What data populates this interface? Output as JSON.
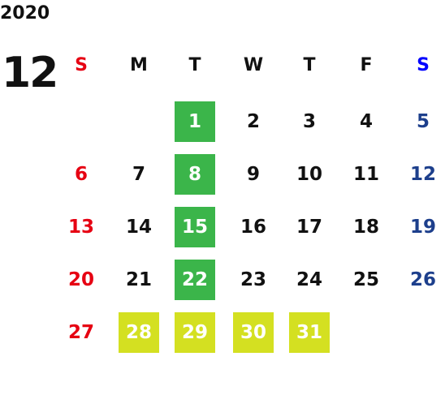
{
  "calendar": {
    "year": "2020",
    "month": "12",
    "weekdays": [
      {
        "label": "S",
        "color": "#e60012"
      },
      {
        "label": "M",
        "color": "#111111"
      },
      {
        "label": "T",
        "color": "#111111"
      },
      {
        "label": "W",
        "color": "#111111"
      },
      {
        "label": "T",
        "color": "#111111"
      },
      {
        "label": "F",
        "color": "#111111"
      },
      {
        "label": "S",
        "color": "#0000ff"
      }
    ],
    "day_colors": [
      "#e60012",
      "#111111",
      "#111111",
      "#111111",
      "#111111",
      "#111111",
      "#1d3f8c"
    ],
    "weeks": [
      [
        null,
        null,
        {
          "day": "1",
          "fill": "#3bb54a"
        },
        {
          "day": "2"
        },
        {
          "day": "3"
        },
        {
          "day": "4"
        },
        {
          "day": "5"
        }
      ],
      [
        {
          "day": "6"
        },
        {
          "day": "7"
        },
        {
          "day": "8",
          "fill": "#3bb54a"
        },
        {
          "day": "9"
        },
        {
          "day": "10"
        },
        {
          "day": "11"
        },
        {
          "day": "12"
        }
      ],
      [
        {
          "day": "13"
        },
        {
          "day": "14"
        },
        {
          "day": "15",
          "fill": "#3bb54a"
        },
        {
          "day": "16"
        },
        {
          "day": "17"
        },
        {
          "day": "18"
        },
        {
          "day": "19"
        }
      ],
      [
        {
          "day": "20"
        },
        {
          "day": "21"
        },
        {
          "day": "22",
          "fill": "#3bb54a"
        },
        {
          "day": "23"
        },
        {
          "day": "24"
        },
        {
          "day": "25"
        },
        {
          "day": "26"
        }
      ],
      [
        {
          "day": "27"
        },
        {
          "day": "28",
          "fill": "#d4e021"
        },
        {
          "day": "29",
          "fill": "#d4e021"
        },
        {
          "day": "30",
          "fill": "#d4e021"
        },
        {
          "day": "31",
          "fill": "#d4e021"
        },
        null,
        null
      ]
    ]
  }
}
